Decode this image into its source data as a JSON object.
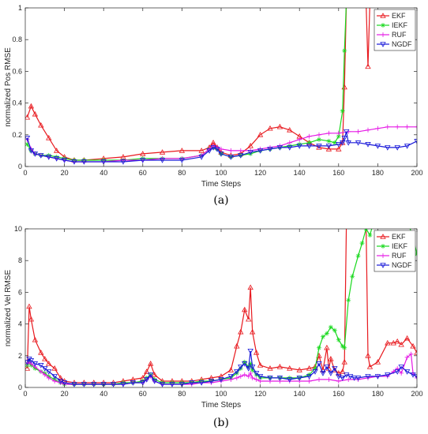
{
  "chart_data": [
    {
      "type": "line",
      "panel_label": "(a)",
      "xlabel": "Time Steps",
      "ylabel": "normalized Pos RMSE",
      "xlim": [
        0,
        200
      ],
      "ylim": [
        0,
        1
      ],
      "xticks": [
        0,
        20,
        40,
        60,
        80,
        100,
        120,
        140,
        160,
        180,
        200
      ],
      "yticks": [
        0,
        0.2,
        0.4,
        0.6,
        0.8,
        1
      ],
      "ytick_labels": [
        "0",
        "0.2",
        "0.4",
        "0.6",
        "0.8",
        "1"
      ],
      "legend_position": "top-right",
      "grid": false,
      "series": [
        {
          "name": "EKF",
          "color": "#e8191e",
          "marker": "triangle-up",
          "x": [
            1,
            3,
            5,
            8,
            12,
            16,
            20,
            25,
            30,
            40,
            50,
            60,
            70,
            80,
            90,
            94,
            96,
            98,
            100,
            105,
            110,
            115,
            120,
            125,
            130,
            135,
            140,
            145,
            150,
            155,
            160,
            162,
            163,
            164,
            165,
            170,
            174,
            175,
            176,
            180
          ],
          "y": [
            0.31,
            0.38,
            0.33,
            0.26,
            0.18,
            0.1,
            0.06,
            0.04,
            0.04,
            0.05,
            0.06,
            0.08,
            0.09,
            0.1,
            0.1,
            0.12,
            0.15,
            0.12,
            0.09,
            0.07,
            0.08,
            0.13,
            0.2,
            0.24,
            0.25,
            0.23,
            0.19,
            0.15,
            0.12,
            0.11,
            0.11,
            0.15,
            0.5,
            1.05,
            1.05,
            1.05,
            1.05,
            0.63,
            1.05,
            1.05
          ]
        },
        {
          "name": "IEKF",
          "color": "#19d91e",
          "marker": "asterisk",
          "x": [
            1,
            3,
            5,
            8,
            12,
            16,
            20,
            25,
            30,
            40,
            50,
            60,
            70,
            80,
            90,
            94,
            96,
            98,
            100,
            105,
            110,
            115,
            120,
            125,
            130,
            135,
            140,
            145,
            150,
            155,
            158,
            160,
            162,
            163,
            164,
            165
          ],
          "y": [
            0.14,
            0.1,
            0.08,
            0.07,
            0.07,
            0.06,
            0.05,
            0.04,
            0.04,
            0.04,
            0.04,
            0.05,
            0.05,
            0.05,
            0.07,
            0.11,
            0.12,
            0.11,
            0.08,
            0.06,
            0.07,
            0.08,
            0.1,
            0.11,
            0.12,
            0.13,
            0.14,
            0.15,
            0.17,
            0.16,
            0.15,
            0.19,
            0.35,
            0.73,
            1.05,
            1.05
          ]
        },
        {
          "name": "RUF",
          "color": "#e519e5",
          "marker": "plus",
          "x": [
            1,
            3,
            5,
            8,
            12,
            16,
            20,
            25,
            30,
            40,
            50,
            60,
            70,
            80,
            90,
            94,
            96,
            98,
            100,
            105,
            110,
            115,
            120,
            125,
            130,
            135,
            140,
            145,
            150,
            155,
            160,
            165,
            170,
            175,
            180,
            185,
            190,
            195,
            200
          ],
          "y": [
            0.17,
            0.11,
            0.08,
            0.07,
            0.06,
            0.05,
            0.04,
            0.03,
            0.03,
            0.03,
            0.04,
            0.04,
            0.05,
            0.05,
            0.07,
            0.11,
            0.13,
            0.12,
            0.11,
            0.1,
            0.1,
            0.1,
            0.11,
            0.12,
            0.13,
            0.15,
            0.17,
            0.19,
            0.2,
            0.21,
            0.21,
            0.22,
            0.22,
            0.23,
            0.24,
            0.25,
            0.25,
            0.25,
            0.25
          ]
        },
        {
          "name": "NGDF",
          "color": "#1919d9",
          "marker": "triangle-down",
          "x": [
            1,
            3,
            5,
            8,
            12,
            16,
            20,
            25,
            30,
            40,
            50,
            60,
            70,
            80,
            90,
            94,
            96,
            98,
            100,
            105,
            110,
            115,
            120,
            125,
            130,
            135,
            140,
            145,
            150,
            155,
            160,
            162,
            163,
            164,
            165,
            170,
            175,
            180,
            185,
            190,
            195,
            200
          ],
          "y": [
            0.18,
            0.1,
            0.08,
            0.07,
            0.06,
            0.05,
            0.04,
            0.03,
            0.03,
            0.03,
            0.03,
            0.04,
            0.04,
            0.04,
            0.06,
            0.1,
            0.12,
            0.11,
            0.08,
            0.06,
            0.07,
            0.09,
            0.1,
            0.11,
            0.12,
            0.12,
            0.13,
            0.13,
            0.13,
            0.13,
            0.14,
            0.15,
            0.18,
            0.22,
            0.15,
            0.15,
            0.14,
            0.13,
            0.12,
            0.12,
            0.13,
            0.16
          ]
        }
      ]
    },
    {
      "type": "line",
      "panel_label": "(b)",
      "xlabel": "Time Steps",
      "ylabel": "normalized Vel RMSE",
      "xlim": [
        0,
        200
      ],
      "ylim": [
        0,
        10
      ],
      "xticks": [
        0,
        20,
        40,
        60,
        80,
        100,
        120,
        140,
        160,
        180,
        200
      ],
      "yticks": [
        0,
        2,
        4,
        6,
        8,
        10
      ],
      "ytick_labels": [
        "0",
        "2",
        "4",
        "6",
        "8",
        "10"
      ],
      "legend_position": "top-right",
      "grid": false,
      "series": [
        {
          "name": "EKF",
          "color": "#e8191e",
          "marker": "triangle-up",
          "x": [
            1,
            2,
            3,
            5,
            8,
            10,
            12,
            15,
            18,
            20,
            25,
            30,
            35,
            40,
            45,
            50,
            55,
            60,
            62,
            64,
            66,
            70,
            75,
            80,
            85,
            90,
            95,
            100,
            105,
            108,
            110,
            112,
            114,
            115,
            116,
            118,
            120,
            125,
            130,
            135,
            140,
            145,
            148,
            150,
            152,
            154,
            155,
            156,
            158,
            160,
            162,
            163,
            164,
            165,
            170,
            174,
            175,
            176,
            180,
            185,
            188,
            190,
            192,
            195,
            198,
            200
          ],
          "y": [
            1.2,
            5.1,
            4.3,
            3.0,
            2.2,
            1.8,
            1.5,
            1.2,
            0.6,
            0.4,
            0.3,
            0.3,
            0.3,
            0.3,
            0.3,
            0.4,
            0.5,
            0.6,
            1.0,
            1.5,
            0.8,
            0.4,
            0.4,
            0.4,
            0.4,
            0.5,
            0.6,
            0.7,
            1.1,
            2.6,
            3.5,
            4.9,
            4.3,
            6.3,
            3.5,
            2.2,
            1.4,
            1.2,
            1.3,
            1.2,
            1.1,
            1.2,
            1.3,
            2.0,
            1.1,
            2.5,
            1.2,
            1.8,
            1.1,
            0.9,
            1.0,
            1.6,
            10.5,
            10.5,
            10.5,
            10.5,
            2.0,
            1.3,
            1.6,
            2.8,
            2.8,
            2.9,
            2.7,
            3.1,
            2.6,
            2.2
          ]
        },
        {
          "name": "IEKF",
          "color": "#19d91e",
          "marker": "asterisk",
          "x": [
            1,
            2,
            3,
            5,
            8,
            10,
            12,
            15,
            18,
            20,
            25,
            30,
            35,
            40,
            45,
            50,
            55,
            60,
            62,
            64,
            66,
            70,
            75,
            80,
            85,
            90,
            95,
            100,
            105,
            108,
            110,
            112,
            114,
            115,
            116,
            118,
            120,
            125,
            130,
            135,
            140,
            145,
            148,
            150,
            152,
            154,
            156,
            158,
            160,
            162,
            163,
            165,
            167,
            170,
            172,
            174,
            176,
            178,
            180,
            185,
            190,
            195,
            198,
            200
          ],
          "y": [
            1.4,
            1.6,
            1.4,
            1.2,
            1.0,
            0.9,
            0.7,
            0.5,
            0.3,
            0.2,
            0.2,
            0.2,
            0.2,
            0.2,
            0.2,
            0.3,
            0.3,
            0.4,
            0.6,
            0.8,
            0.5,
            0.3,
            0.3,
            0.3,
            0.3,
            0.4,
            0.4,
            0.5,
            0.6,
            0.9,
            1.2,
            1.6,
            1.3,
            1.5,
            1.1,
            0.8,
            0.6,
            0.6,
            0.6,
            0.6,
            0.6,
            0.8,
            1.2,
            2.5,
            3.2,
            3.4,
            3.8,
            3.6,
            3.0,
            2.6,
            2.5,
            5.5,
            7.0,
            8.3,
            9.1,
            10.0,
            9.6,
            10.5,
            10.5,
            10.5,
            10.5,
            10.5,
            9.5,
            8.4
          ]
        },
        {
          "name": "RUF",
          "color": "#e519e5",
          "marker": "plus",
          "x": [
            1,
            2,
            3,
            5,
            8,
            10,
            12,
            15,
            18,
            20,
            25,
            30,
            35,
            40,
            45,
            50,
            55,
            60,
            62,
            64,
            66,
            70,
            75,
            80,
            85,
            90,
            95,
            100,
            105,
            108,
            110,
            112,
            114,
            115,
            116,
            118,
            120,
            125,
            130,
            135,
            140,
            145,
            150,
            155,
            160,
            165,
            170,
            175,
            180,
            185,
            188,
            190,
            192,
            195,
            197,
            198,
            200
          ],
          "y": [
            1.5,
            1.6,
            1.5,
            1.3,
            1.0,
            0.8,
            0.6,
            0.4,
            0.3,
            0.2,
            0.2,
            0.2,
            0.2,
            0.2,
            0.2,
            0.2,
            0.3,
            0.3,
            0.5,
            0.7,
            0.4,
            0.2,
            0.2,
            0.2,
            0.2,
            0.3,
            0.3,
            0.4,
            0.5,
            0.6,
            0.7,
            0.8,
            0.7,
            0.9,
            0.6,
            0.5,
            0.4,
            0.4,
            0.4,
            0.4,
            0.4,
            0.4,
            0.5,
            0.5,
            0.4,
            0.5,
            0.5,
            0.6,
            0.7,
            0.7,
            1.0,
            1.2,
            0.9,
            1.9,
            2.1,
            0.9,
            0.6
          ]
        },
        {
          "name": "NGDF",
          "color": "#1919d9",
          "marker": "triangle-down",
          "x": [
            1,
            2,
            3,
            5,
            8,
            10,
            12,
            15,
            18,
            20,
            25,
            30,
            35,
            40,
            45,
            50,
            55,
            60,
            62,
            64,
            66,
            70,
            75,
            80,
            85,
            90,
            95,
            100,
            105,
            108,
            110,
            112,
            114,
            115,
            116,
            118,
            120,
            125,
            130,
            135,
            140,
            145,
            148,
            150,
            152,
            154,
            156,
            158,
            160,
            162,
            164,
            166,
            168,
            170,
            175,
            180,
            185,
            190,
            192,
            195,
            198,
            200
          ],
          "y": [
            1.6,
            1.8,
            1.7,
            1.5,
            1.4,
            1.2,
            1.0,
            0.7,
            0.4,
            0.3,
            0.2,
            0.2,
            0.2,
            0.2,
            0.2,
            0.2,
            0.3,
            0.3,
            0.5,
            0.8,
            0.4,
            0.2,
            0.2,
            0.2,
            0.3,
            0.3,
            0.4,
            0.5,
            0.7,
            1.0,
            1.3,
            1.5,
            1.2,
            2.3,
            1.3,
            0.9,
            0.7,
            0.6,
            0.6,
            0.5,
            0.6,
            0.7,
            1.0,
            1.5,
            0.9,
            1.3,
            0.9,
            1.2,
            0.7,
            0.6,
            0.8,
            0.7,
            0.6,
            0.6,
            0.7,
            0.7,
            0.8,
            1.0,
            1.3,
            1.0,
            0.8,
            0.7
          ]
        }
      ]
    }
  ]
}
